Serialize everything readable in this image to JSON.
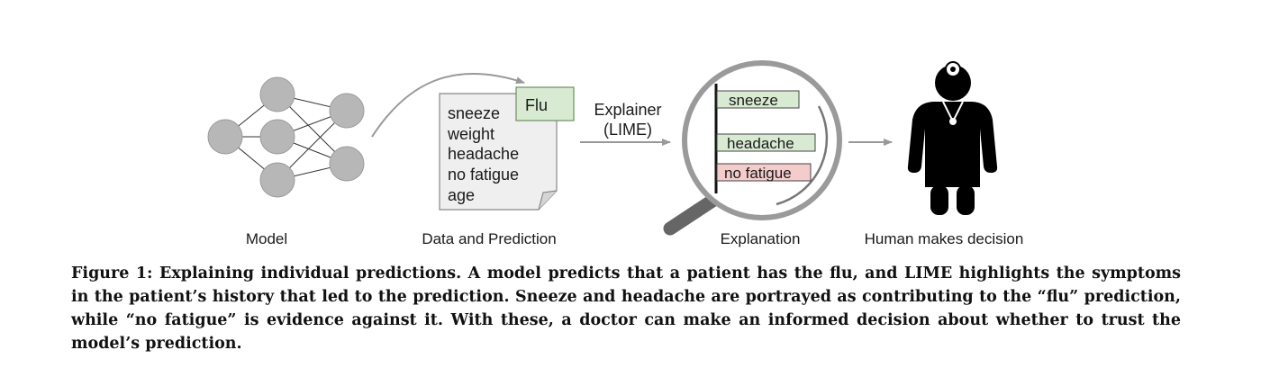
{
  "diagram": {
    "stages": {
      "model": "Model",
      "data": "Data and Prediction",
      "explanation": "Explanation",
      "human": "Human makes decision"
    },
    "document": {
      "prediction": "Flu",
      "features": [
        "sneeze",
        "weight",
        "headache",
        "no fatigue",
        "age"
      ]
    },
    "explainer": {
      "line1": "Explainer",
      "line2": "(LIME)"
    },
    "explanation_bars": [
      {
        "label": "sneeze",
        "effect": "supports"
      },
      {
        "label": "headache",
        "effect": "supports"
      },
      {
        "label": "no fatigue",
        "effect": "against"
      }
    ],
    "colors": {
      "support_fill": "#d9ead3",
      "support_stroke": "#6a8f5e",
      "against_fill": "#f4cccc",
      "against_stroke": "#b77",
      "node": "#b7b7b7",
      "arrow": "#999999",
      "icon": "#000000"
    },
    "icons": [
      "neural-network-icon",
      "document-icon",
      "magnifier-icon",
      "doctor-icon"
    ]
  },
  "caption": {
    "text": "Figure 1: Explaining individual predictions. A model predicts that a patient has the flu, and LIME highlights the symptoms in the patient’s history that led to the prediction. Sneeze and headache are portrayed as contributing to the “flu” prediction, while “no fatigue” is evidence against it. With these, a doctor can make an informed decision about whether to trust the model’s prediction."
  }
}
